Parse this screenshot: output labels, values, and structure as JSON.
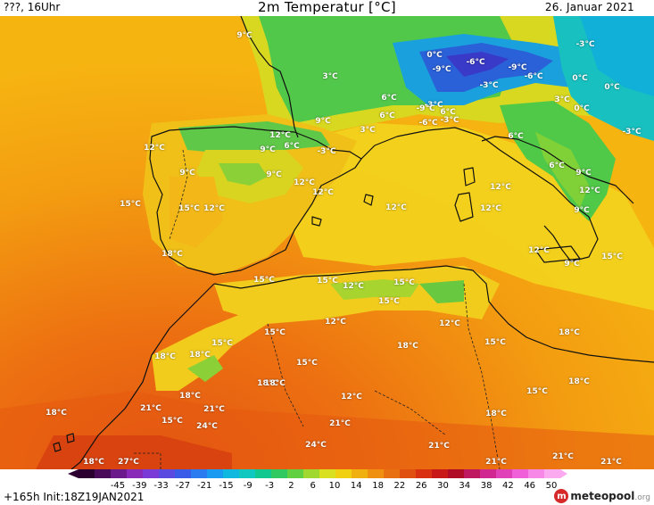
{
  "header": {
    "left": "???, 16Uhr",
    "title": "2m Temperatur [°C]",
    "date": "26. Januar 2021"
  },
  "map": {
    "labels": [
      {
        "t": "9°C"
      },
      {
        "t": "0°C"
      },
      {
        "t": "-6°C"
      },
      {
        "t": "-3°C"
      },
      {
        "t": "-9°C"
      },
      {
        "t": "-9°C"
      },
      {
        "t": "-6°C"
      },
      {
        "t": "-3°C"
      },
      {
        "t": "3°C"
      },
      {
        "t": "6°C"
      },
      {
        "t": "-3°C"
      },
      {
        "t": "0°C"
      },
      {
        "t": "0°C"
      },
      {
        "t": "6°C"
      },
      {
        "t": "-9°C"
      },
      {
        "t": "6°C"
      },
      {
        "t": "-6°C"
      },
      {
        "t": "-3°C"
      },
      {
        "t": "3°C"
      },
      {
        "t": "6°C"
      },
      {
        "t": "0°C"
      },
      {
        "t": "-3°C"
      },
      {
        "t": "9°C"
      },
      {
        "t": "3°C"
      },
      {
        "t": "9°C"
      },
      {
        "t": "6°C"
      },
      {
        "t": "12°C"
      },
      {
        "t": "12°C"
      },
      {
        "t": "9°C"
      },
      {
        "t": "6°C"
      },
      {
        "t": "-3°C"
      },
      {
        "t": "9°C"
      },
      {
        "t": "9°C"
      },
      {
        "t": "12°C"
      },
      {
        "t": "12°C"
      },
      {
        "t": "15°C"
      },
      {
        "t": "15°C"
      },
      {
        "t": "12°C"
      },
      {
        "t": "12°C"
      },
      {
        "t": "12°C"
      },
      {
        "t": "12°C"
      },
      {
        "t": "9°C"
      },
      {
        "t": "18°C"
      },
      {
        "t": "12°C"
      },
      {
        "t": "9°C"
      },
      {
        "t": "12°C"
      },
      {
        "t": "15°C"
      },
      {
        "t": "15°C"
      },
      {
        "t": "15°C"
      },
      {
        "t": "12°C"
      },
      {
        "t": "15°C"
      },
      {
        "t": "12°C"
      },
      {
        "t": "12°C"
      },
      {
        "t": "15°C"
      },
      {
        "t": "15°C"
      },
      {
        "t": "18°C"
      },
      {
        "t": "18°C"
      },
      {
        "t": "15°C"
      },
      {
        "t": "15°C"
      },
      {
        "t": "18°C"
      },
      {
        "t": "15°C"
      },
      {
        "t": "18°C"
      },
      {
        "t": "18°C"
      },
      {
        "t": "18°C"
      },
      {
        "t": "12°C"
      },
      {
        "t": "18°C"
      },
      {
        "t": "21°C"
      },
      {
        "t": "21°C"
      },
      {
        "t": "15°C"
      },
      {
        "t": "24°C"
      },
      {
        "t": "18°C"
      },
      {
        "t": "21°C"
      },
      {
        "t": "18°C"
      },
      {
        "t": "24°C"
      },
      {
        "t": "21°C"
      },
      {
        "t": "21°C"
      },
      {
        "t": "21°C"
      },
      {
        "t": "18°C"
      },
      {
        "t": "27°C"
      },
      {
        "t": "21°C"
      },
      {
        "t": "15°C"
      },
      {
        "t": "18°C"
      }
    ]
  },
  "colorbar": {
    "ticks": [
      "-45",
      "-39",
      "-33",
      "-27",
      "-21",
      "-15",
      "-9",
      "-3",
      "2",
      "6",
      "10",
      "14",
      "18",
      "22",
      "26",
      "30",
      "34",
      "38",
      "42",
      "46",
      "50"
    ],
    "colors": [
      "#2b0030",
      "#4a0a5a",
      "#6a1a8a",
      "#8a2ab8",
      "#7a3ad8",
      "#5a4ae0",
      "#3a5ae8",
      "#2a7af0",
      "#1a9af0",
      "#10b8e0",
      "#10c8c0",
      "#10c890",
      "#30c860",
      "#60d040",
      "#a0d830",
      "#d8e020",
      "#f0d010",
      "#f0b010",
      "#f09010",
      "#e87010",
      "#e05010",
      "#d83010",
      "#c81818",
      "#b00c28",
      "#c01860",
      "#d02890",
      "#e040b8",
      "#f060d8",
      "#f888e8",
      "#fcaaf0"
    ]
  },
  "footer": {
    "run": "+165h  Init:18Z19JAN2021",
    "logo_mark": "m",
    "logo_name": "meteopool",
    "logo_tld": ".org"
  }
}
